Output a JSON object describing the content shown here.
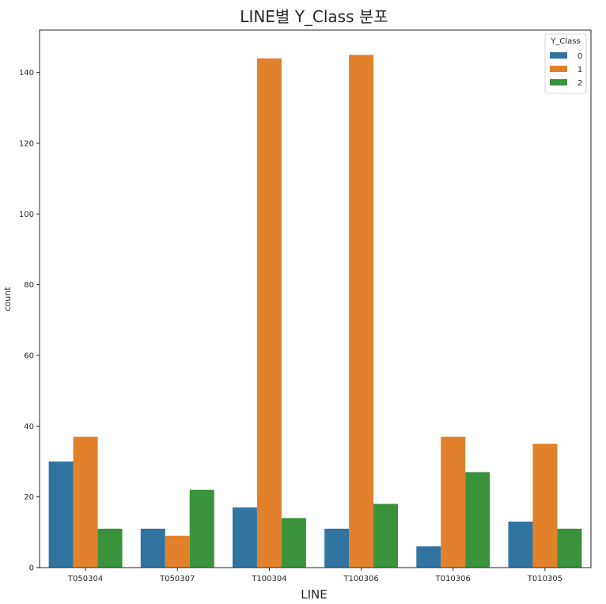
{
  "chart_data": {
    "type": "bar",
    "title": "LINE별 Y_Class 분포",
    "xlabel": "LINE",
    "ylabel": "count",
    "categories": [
      "T050304",
      "T050307",
      "T100304",
      "T100306",
      "T010306",
      "T010305"
    ],
    "series": [
      {
        "name": "0",
        "color": "#3274a1",
        "values": [
          30,
          11,
          17,
          11,
          6,
          13
        ]
      },
      {
        "name": "1",
        "color": "#e1812c",
        "values": [
          37,
          9,
          144,
          145,
          37,
          35
        ]
      },
      {
        "name": "2",
        "color": "#3a923a",
        "values": [
          11,
          22,
          14,
          18,
          27,
          11
        ]
      }
    ],
    "ylim": [
      0,
      152
    ],
    "yticks": [
      0,
      20,
      40,
      60,
      80,
      100,
      120,
      140
    ],
    "legend": {
      "title": "Y_Class",
      "placement": "top-right"
    },
    "grid": false
  }
}
